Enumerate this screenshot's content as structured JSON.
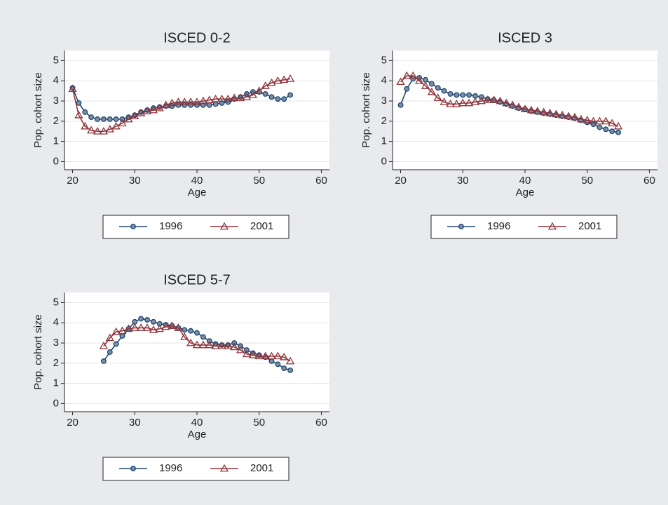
{
  "chart_data": [
    {
      "type": "line",
      "title": "ISCED 0-2",
      "xlabel": "Age",
      "ylabel": "Pop. cohort size",
      "x": [
        20,
        21,
        22,
        23,
        24,
        25,
        26,
        27,
        28,
        29,
        30,
        31,
        32,
        33,
        34,
        35,
        36,
        37,
        38,
        39,
        40,
        41,
        42,
        43,
        44,
        45,
        46,
        47,
        48,
        49,
        50,
        51,
        52,
        53,
        54,
        55
      ],
      "series": [
        {
          "name": "1996",
          "color": "#1a476f",
          "marker": "circle",
          "values": [
            3.65,
            2.9,
            2.45,
            2.2,
            2.1,
            2.1,
            2.1,
            2.1,
            2.1,
            2.2,
            2.3,
            2.45,
            2.55,
            2.65,
            2.7,
            2.75,
            2.75,
            2.8,
            2.8,
            2.8,
            2.8,
            2.8,
            2.8,
            2.85,
            2.9,
            2.95,
            3.1,
            3.2,
            3.35,
            3.45,
            3.45,
            3.35,
            3.2,
            3.1,
            3.1,
            3.3
          ]
        },
        {
          "name": "2001",
          "color": "#90353b",
          "marker": "triangle",
          "values": [
            3.6,
            2.3,
            1.75,
            1.55,
            1.5,
            1.5,
            1.6,
            1.75,
            1.9,
            2.1,
            2.25,
            2.4,
            2.5,
            2.55,
            2.65,
            2.8,
            2.9,
            2.95,
            2.95,
            2.95,
            2.95,
            3.0,
            3.05,
            3.1,
            3.1,
            3.1,
            3.15,
            3.15,
            3.2,
            3.3,
            3.5,
            3.75,
            3.9,
            4.0,
            4.05,
            4.1
          ]
        }
      ],
      "xlim": [
        18.7,
        61.3
      ],
      "ylim": [
        -0.4,
        5.5
      ],
      "xticks": [
        20,
        30,
        40,
        50,
        60
      ],
      "yticks": [
        0,
        1,
        2,
        3,
        4,
        5
      ],
      "grid": true
    },
    {
      "type": "line",
      "title": "ISCED 3",
      "xlabel": "Age",
      "ylabel": "Pop. cohort size",
      "x": [
        20,
        21,
        22,
        23,
        24,
        25,
        26,
        27,
        28,
        29,
        30,
        31,
        32,
        33,
        34,
        35,
        36,
        37,
        38,
        39,
        40,
        41,
        42,
        43,
        44,
        45,
        46,
        47,
        48,
        49,
        50,
        51,
        52,
        53,
        54,
        55
      ],
      "series": [
        {
          "name": "1996",
          "color": "#1a476f",
          "marker": "circle",
          "values": [
            2.8,
            3.6,
            4.1,
            4.15,
            4.05,
            3.85,
            3.65,
            3.5,
            3.35,
            3.3,
            3.3,
            3.3,
            3.25,
            3.2,
            3.1,
            3.05,
            2.95,
            2.85,
            2.75,
            2.65,
            2.6,
            2.5,
            2.45,
            2.4,
            2.35,
            2.3,
            2.25,
            2.2,
            2.15,
            2.05,
            1.95,
            1.85,
            1.7,
            1.6,
            1.5,
            1.45
          ]
        },
        {
          "name": "2001",
          "color": "#90353b",
          "marker": "triangle",
          "values": [
            3.95,
            4.25,
            4.25,
            4.0,
            3.75,
            3.45,
            3.15,
            2.95,
            2.85,
            2.85,
            2.9,
            2.9,
            2.95,
            3.0,
            3.05,
            3.05,
            3.0,
            2.9,
            2.8,
            2.7,
            2.6,
            2.55,
            2.5,
            2.45,
            2.4,
            2.35,
            2.3,
            2.25,
            2.2,
            2.1,
            2.05,
            2.0,
            2.0,
            2.0,
            1.9,
            1.75
          ]
        }
      ],
      "xlim": [
        18.7,
        61.3
      ],
      "ylim": [
        -0.4,
        5.5
      ],
      "xticks": [
        20,
        30,
        40,
        50,
        60
      ],
      "yticks": [
        0,
        1,
        2,
        3,
        4,
        5
      ],
      "grid": true
    },
    {
      "type": "line",
      "title": "ISCED 5-7",
      "xlabel": "Age",
      "ylabel": "Pop. cohort size",
      "x": [
        25,
        26,
        27,
        28,
        29,
        30,
        31,
        32,
        33,
        34,
        35,
        36,
        37,
        38,
        39,
        40,
        41,
        42,
        43,
        44,
        45,
        46,
        47,
        48,
        49,
        50,
        51,
        52,
        53,
        54,
        55
      ],
      "series": [
        {
          "name": "1996",
          "color": "#1a476f",
          "marker": "circle",
          "values": [
            2.1,
            2.55,
            2.95,
            3.35,
            3.7,
            4.05,
            4.2,
            4.15,
            4.05,
            3.95,
            3.9,
            3.85,
            3.75,
            3.65,
            3.6,
            3.5,
            3.3,
            3.1,
            2.95,
            2.9,
            2.9,
            3.0,
            2.85,
            2.65,
            2.5,
            2.4,
            2.3,
            2.1,
            1.95,
            1.75,
            1.65
          ]
        },
        {
          "name": "2001",
          "color": "#90353b",
          "marker": "triangle",
          "values": [
            2.85,
            3.25,
            3.55,
            3.6,
            3.7,
            3.75,
            3.75,
            3.75,
            3.65,
            3.7,
            3.8,
            3.85,
            3.75,
            3.3,
            3.0,
            2.9,
            2.9,
            2.9,
            2.85,
            2.85,
            2.85,
            2.8,
            2.65,
            2.45,
            2.4,
            2.35,
            2.35,
            2.35,
            2.35,
            2.3,
            2.1
          ]
        }
      ],
      "xlim": [
        18.7,
        61.3
      ],
      "ylim": [
        -0.4,
        5.5
      ],
      "xticks": [
        20,
        30,
        40,
        50,
        60
      ],
      "yticks": [
        0,
        1,
        2,
        3,
        4,
        5
      ],
      "grid": true
    }
  ]
}
